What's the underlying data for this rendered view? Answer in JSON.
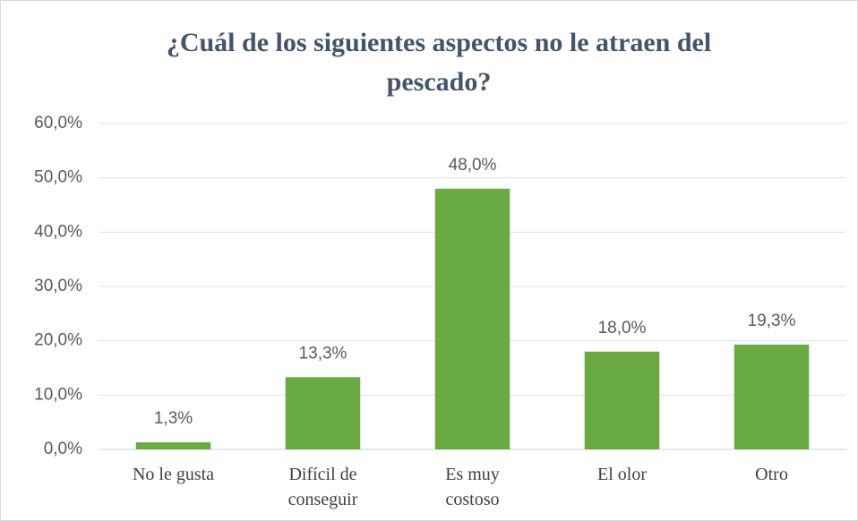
{
  "chart_data": {
    "type": "bar",
    "title": "¿Cuál de los siguientes aspectos no le atraen del pescado?",
    "categories": [
      "No le gusta",
      "Difícil de conseguir",
      "Es muy costoso",
      "El olor",
      "Otro"
    ],
    "values": [
      1.3,
      13.3,
      48.0,
      18.0,
      19.3
    ],
    "value_labels": [
      "1,3%",
      "13,3%",
      "48,0%",
      "18,0%",
      "19,3%"
    ],
    "color": "#6aaa43",
    "ylim": [
      0,
      60
    ],
    "yticks": [
      {
        "value": 0,
        "label": "0,0%"
      },
      {
        "value": 10,
        "label": "10,0%"
      },
      {
        "value": 20,
        "label": "20,0%"
      },
      {
        "value": 30,
        "label": "30,0%"
      },
      {
        "value": 40,
        "label": "40,0%"
      },
      {
        "value": 50,
        "label": "50,0%"
      },
      {
        "value": 60,
        "label": "60,0%"
      }
    ],
    "grid": true
  }
}
